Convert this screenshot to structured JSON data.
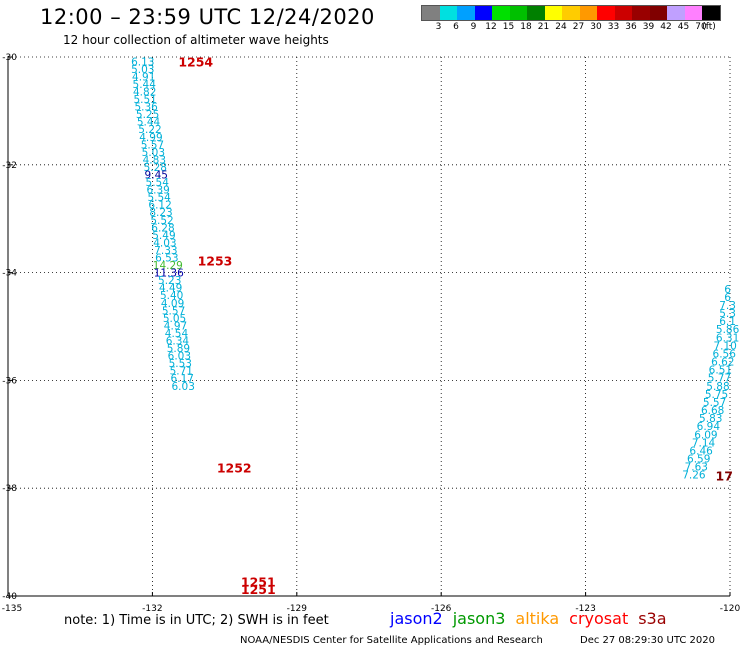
{
  "header": {
    "title": "12:00 – 23:59 UTC 12/24/2020",
    "subtitle": "12 hour collection of altimeter wave heights"
  },
  "colorbar": {
    "colors": [
      "#808080",
      "#00e0e0",
      "#00a0ff",
      "#0000ff",
      "#00e000",
      "#00c000",
      "#008000",
      "#ffff00",
      "#ffcc00",
      "#ff9900",
      "#ff0000",
      "#cc0000",
      "#990000",
      "#800000",
      "#c0a0ff",
      "#ff80ff",
      "#000000"
    ],
    "labels": [
      "3",
      "6",
      "9",
      "12",
      "15",
      "18",
      "21",
      "24",
      "27",
      "30",
      "33",
      "36",
      "39",
      "42",
      "45",
      "70",
      "(ft)"
    ]
  },
  "footer": {
    "note": "note: 1) Time is in UTC; 2) SWH is in feet",
    "credit": "NOAA/NESDIS Center for Satellite Applications and Research",
    "date": "Dec 27 08:29:30 UTC 2020"
  },
  "satellites": [
    {
      "name": "jason2",
      "color": "#0000ff"
    },
    {
      "name": "jason3",
      "color": "#009900"
    },
    {
      "name": "altika",
      "color": "#ff9900"
    },
    {
      "name": "cryosat",
      "color": "#ff0000"
    },
    {
      "name": "s3a",
      "color": "#990000"
    }
  ],
  "chart_data": {
    "type": "scatter",
    "xlabel": "",
    "ylabel": "",
    "xlim": [
      -135,
      -120
    ],
    "ylim": [
      -40,
      -30
    ],
    "x_ticks": [
      "-135",
      "-132",
      "-129",
      "-126",
      "-123",
      "-120"
    ],
    "y_ticks": [
      "-30",
      "-32",
      "-34",
      "-36",
      "-38",
      "-40"
    ],
    "grid": true,
    "track_labels": [
      {
        "text": "1254",
        "lon": -131.1,
        "lat": -30.08,
        "color": "#cc0000"
      },
      {
        "text": "1253",
        "lon": -130.7,
        "lat": -33.78,
        "color": "#cc0000"
      },
      {
        "text": "1252",
        "lon": -130.3,
        "lat": -37.62,
        "color": "#cc0000"
      },
      {
        "text": "1251",
        "lon": -129.8,
        "lat": -39.73,
        "color": "#cc0000"
      },
      {
        "text": "1251",
        "lon": -129.8,
        "lat": -39.87,
        "color": "#cc0000"
      },
      {
        "text": "17",
        "lon": -120.12,
        "lat": -37.76,
        "color": "#800000"
      }
    ],
    "series": [
      {
        "points": [
          {
            "lon": -132.2,
            "lat": -30.08,
            "v": "6.13"
          },
          {
            "lon": -132.2,
            "lat": -30.22,
            "v": "5.03"
          },
          {
            "lon": -132.18,
            "lat": -30.36,
            "v": "4.91"
          },
          {
            "lon": -132.17,
            "lat": -30.5,
            "v": "5.44"
          },
          {
            "lon": -132.16,
            "lat": -30.64,
            "v": "4.82"
          },
          {
            "lon": -132.15,
            "lat": -30.78,
            "v": "5.51"
          },
          {
            "lon": -132.13,
            "lat": -30.92,
            "v": "5.36"
          },
          {
            "lon": -132.1,
            "lat": -31.06,
            "v": "5.25"
          },
          {
            "lon": -132.08,
            "lat": -31.2,
            "v": "5.44"
          },
          {
            "lon": -132.05,
            "lat": -31.34,
            "v": "5.22"
          },
          {
            "lon": -132.03,
            "lat": -31.48,
            "v": "4.99"
          },
          {
            "lon": -132.0,
            "lat": -31.62,
            "v": "5.57"
          },
          {
            "lon": -131.98,
            "lat": -31.76,
            "v": "5.03"
          },
          {
            "lon": -131.96,
            "lat": -31.9,
            "v": "4.83"
          },
          {
            "lon": -131.94,
            "lat": -32.04,
            "v": "5.28"
          },
          {
            "lon": -131.92,
            "lat": -32.18,
            "v": "9.45"
          },
          {
            "lon": -131.9,
            "lat": -32.32,
            "v": "5.54"
          },
          {
            "lon": -131.88,
            "lat": -32.46,
            "v": "6.39"
          },
          {
            "lon": -131.86,
            "lat": -32.6,
            "v": "5.54"
          },
          {
            "lon": -131.84,
            "lat": -32.74,
            "v": "6.12"
          },
          {
            "lon": -131.82,
            "lat": -32.88,
            "v": "8.23"
          },
          {
            "lon": -131.8,
            "lat": -33.02,
            "v": "5.52"
          },
          {
            "lon": -131.78,
            "lat": -33.16,
            "v": "6.28"
          },
          {
            "lon": -131.76,
            "lat": -33.3,
            "v": "5.49"
          },
          {
            "lon": -131.74,
            "lat": -33.44,
            "v": "4.03"
          },
          {
            "lon": -131.72,
            "lat": -33.58,
            "v": "7.33"
          },
          {
            "lon": -131.7,
            "lat": -33.72,
            "v": "6.53"
          },
          {
            "lon": -131.68,
            "lat": -33.86,
            "v": "14.29"
          },
          {
            "lon": -131.66,
            "lat": -34.0,
            "v": "11.36"
          },
          {
            "lon": -131.64,
            "lat": -34.14,
            "v": "5.23"
          },
          {
            "lon": -131.62,
            "lat": -34.28,
            "v": "4.49"
          },
          {
            "lon": -131.6,
            "lat": -34.42,
            "v": "5.40"
          },
          {
            "lon": -131.58,
            "lat": -34.56,
            "v": "4.09"
          },
          {
            "lon": -131.56,
            "lat": -34.7,
            "v": "5.57"
          },
          {
            "lon": -131.54,
            "lat": -34.84,
            "v": "5.05"
          },
          {
            "lon": -131.52,
            "lat": -34.98,
            "v": "4.97"
          },
          {
            "lon": -131.5,
            "lat": -35.12,
            "v": "4.54"
          },
          {
            "lon": -131.48,
            "lat": -35.26,
            "v": "6.34"
          },
          {
            "lon": -131.46,
            "lat": -35.4,
            "v": "5.89"
          },
          {
            "lon": -131.44,
            "lat": -35.54,
            "v": "6.03"
          },
          {
            "lon": -131.42,
            "lat": -35.68,
            "v": "5.53"
          },
          {
            "lon": -131.4,
            "lat": -35.82,
            "v": "5.71"
          },
          {
            "lon": -131.38,
            "lat": -35.96,
            "v": "6.17"
          },
          {
            "lon": -131.36,
            "lat": -36.1,
            "v": "6.03"
          }
        ]
      },
      {
        "points": [
          {
            "lon": -120.05,
            "lat": -34.3,
            "v": "6"
          },
          {
            "lon": -120.05,
            "lat": -34.45,
            "v": "6"
          },
          {
            "lon": -120.05,
            "lat": -34.6,
            "v": "7.3"
          },
          {
            "lon": -120.05,
            "lat": -34.75,
            "v": "5.3"
          },
          {
            "lon": -120.05,
            "lat": -34.9,
            "v": "6.1"
          },
          {
            "lon": -120.05,
            "lat": -35.05,
            "v": "5.86"
          },
          {
            "lon": -120.05,
            "lat": -35.2,
            "v": "6.31"
          },
          {
            "lon": -120.1,
            "lat": -35.35,
            "v": "7.10"
          },
          {
            "lon": -120.12,
            "lat": -35.5,
            "v": "6.56"
          },
          {
            "lon": -120.15,
            "lat": -35.65,
            "v": "6.62"
          },
          {
            "lon": -120.2,
            "lat": -35.8,
            "v": "6.51"
          },
          {
            "lon": -120.22,
            "lat": -35.95,
            "v": "5.77"
          },
          {
            "lon": -120.25,
            "lat": -36.1,
            "v": "5.88"
          },
          {
            "lon": -120.28,
            "lat": -36.25,
            "v": "5.75"
          },
          {
            "lon": -120.32,
            "lat": -36.4,
            "v": "5.57"
          },
          {
            "lon": -120.36,
            "lat": -36.55,
            "v": "6.68"
          },
          {
            "lon": -120.4,
            "lat": -36.7,
            "v": "5.83"
          },
          {
            "lon": -120.45,
            "lat": -36.85,
            "v": "6.94"
          },
          {
            "lon": -120.5,
            "lat": -37.0,
            "v": "6.09"
          },
          {
            "lon": -120.55,
            "lat": -37.15,
            "v": "7.14"
          },
          {
            "lon": -120.6,
            "lat": -37.3,
            "v": "6.46"
          },
          {
            "lon": -120.65,
            "lat": -37.45,
            "v": "6.59"
          },
          {
            "lon": -120.7,
            "lat": -37.6,
            "v": "7.63"
          },
          {
            "lon": -120.75,
            "lat": -37.75,
            "v": "7.26"
          }
        ]
      }
    ]
  }
}
